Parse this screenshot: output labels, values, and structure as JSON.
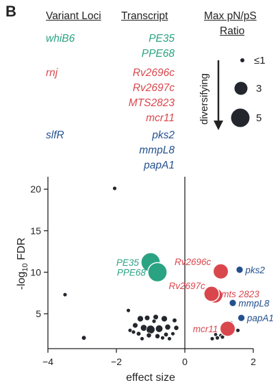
{
  "panel_letter": "B",
  "table": {
    "header_loci": "Variant Loci",
    "header_transcript": "Transcript",
    "header_ratio_line1": "Max pN/pS",
    "header_ratio_line2": "Ratio",
    "groups": [
      {
        "locus": "whiB6",
        "color": "#2aa383",
        "transcripts": [
          "PE35",
          "PPE68"
        ]
      },
      {
        "locus": "rnj",
        "color": "#d9474d",
        "transcripts": [
          "Rv2696c",
          "Rv2697c",
          "MTS2823",
          "mcr11"
        ]
      },
      {
        "locus": "slfR",
        "color": "#24508e",
        "transcripts": [
          "pks2",
          "mmpL8",
          "papA1"
        ]
      }
    ]
  },
  "legend": {
    "arrow_label": "diversifying",
    "sizes": [
      {
        "label": "≤1",
        "value": 1
      },
      {
        "label": "3",
        "value": 3
      },
      {
        "label": "5",
        "value": 5
      }
    ]
  },
  "colors": {
    "background_points": "#23262d",
    "green": "#2aa383",
    "red": "#d9474d",
    "blue": "#24508e"
  },
  "chart_data": {
    "type": "scatter",
    "xlabel": "effect size",
    "ylabel_prefix": "-log",
    "ylabel_sub": "10",
    "ylabel_suffix": " FDR",
    "xlim": [
      -4,
      2
    ],
    "ylim": [
      0.8,
      21.5
    ],
    "xticks": [
      -4,
      -2,
      0,
      2
    ],
    "yticks": [
      5,
      10,
      15,
      20
    ],
    "vline_x": 0,
    "labeled_points": [
      {
        "label": "PE35",
        "x": -1.0,
        "y": 11.2,
        "ratio": 5,
        "color": "#2aa383",
        "label_side": "left"
      },
      {
        "label": "PPE68",
        "x": -0.8,
        "y": 10.0,
        "ratio": 5,
        "color": "#2aa383",
        "label_side": "left"
      },
      {
        "label": "Rv2696c",
        "x": 1.05,
        "y": 10.1,
        "ratio": 4,
        "color": "#d9474d",
        "label_side": "left"
      },
      {
        "label": "Rv2697c",
        "x": 0.88,
        "y": 7.2,
        "ratio": 4,
        "color": "#d9474d",
        "label_side": "left"
      },
      {
        "label": "mts 2823",
        "x": 0.78,
        "y": 7.4,
        "ratio": 4,
        "color": "#d9474d",
        "label_side": "right"
      },
      {
        "label": "mcr11",
        "x": 1.25,
        "y": 3.2,
        "ratio": 4,
        "color": "#d9474d",
        "label_side": "left"
      },
      {
        "label": "pks2",
        "x": 1.6,
        "y": 10.3,
        "ratio": 2,
        "color": "#24508e",
        "label_side": "right"
      },
      {
        "label": "mmpL8",
        "x": 1.4,
        "y": 6.3,
        "ratio": 2,
        "color": "#24508e",
        "label_side": "right"
      },
      {
        "label": "papA1",
        "x": 1.65,
        "y": 4.5,
        "ratio": 2,
        "color": "#24508e",
        "label_side": "right"
      }
    ],
    "background_points": [
      {
        "x": -2.05,
        "y": 20.1,
        "ratio": 1
      },
      {
        "x": -3.5,
        "y": 7.3,
        "ratio": 1
      },
      {
        "x": -2.95,
        "y": 2.1,
        "ratio": 1.3
      },
      {
        "x": -1.65,
        "y": 5.4,
        "ratio": 1
      },
      {
        "x": -1.3,
        "y": 4.4,
        "ratio": 1.7
      },
      {
        "x": -1.1,
        "y": 4.5,
        "ratio": 1.5
      },
      {
        "x": -0.85,
        "y": 4.6,
        "ratio": 1.5
      },
      {
        "x": -0.6,
        "y": 4.4,
        "ratio": 1.7
      },
      {
        "x": -0.3,
        "y": 4.2,
        "ratio": 1.3
      },
      {
        "x": -1.45,
        "y": 3.6,
        "ratio": 1.5
      },
      {
        "x": -1.2,
        "y": 3.3,
        "ratio": 1.8
      },
      {
        "x": -1.0,
        "y": 3.1,
        "ratio": 2.3
      },
      {
        "x": -0.75,
        "y": 3.2,
        "ratio": 2.0
      },
      {
        "x": -0.5,
        "y": 3.4,
        "ratio": 1.6
      },
      {
        "x": -0.25,
        "y": 3.3,
        "ratio": 1.4
      },
      {
        "x": -1.35,
        "y": 2.6,
        "ratio": 1.3
      },
      {
        "x": -1.05,
        "y": 2.4,
        "ratio": 1.4
      },
      {
        "x": -0.8,
        "y": 2.3,
        "ratio": 1.4
      },
      {
        "x": -0.55,
        "y": 2.5,
        "ratio": 1.3
      },
      {
        "x": -1.6,
        "y": 3.0,
        "ratio": 1.0
      },
      {
        "x": -0.35,
        "y": 2.6,
        "ratio": 1.0
      },
      {
        "x": -0.9,
        "y": 4.1,
        "ratio": 1.2
      },
      {
        "x": -1.25,
        "y": 2.0,
        "ratio": 1.0
      },
      {
        "x": -0.65,
        "y": 2.1,
        "ratio": 1.0
      },
      {
        "x": -0.45,
        "y": 2.0,
        "ratio": 1.0
      },
      {
        "x": -1.5,
        "y": 2.8,
        "ratio": 1.0
      },
      {
        "x": 0.9,
        "y": 2.5,
        "ratio": 1.1
      },
      {
        "x": 1.05,
        "y": 2.4,
        "ratio": 1.1
      },
      {
        "x": 0.95,
        "y": 2.1,
        "ratio": 1.0
      },
      {
        "x": 0.8,
        "y": 2.0,
        "ratio": 1.0
      },
      {
        "x": 1.1,
        "y": 2.2,
        "ratio": 1.0
      },
      {
        "x": 1.55,
        "y": 3.0,
        "ratio": 1.0
      },
      {
        "x": 1.35,
        "y": 3.9,
        "ratio": 1.0
      },
      {
        "x": 0.85,
        "y": 7.6,
        "ratio": 1.0
      }
    ]
  }
}
